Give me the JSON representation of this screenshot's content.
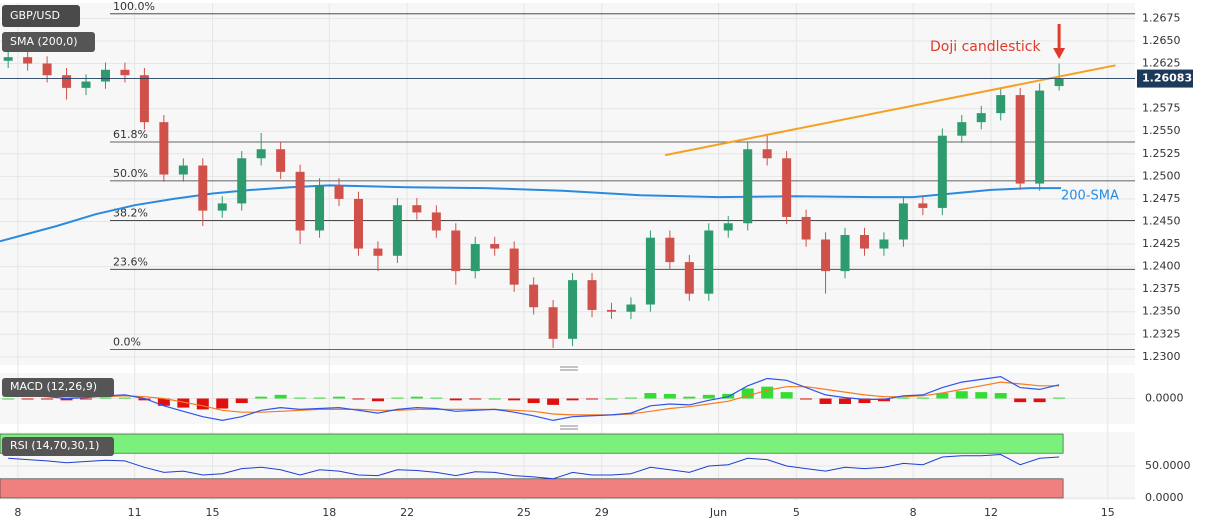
{
  "chart_data": [
    {
      "type": "candlestick",
      "title": "GBP/USD",
      "indicator_label": "SMA (200,0)",
      "x": [
        -0.25,
        0.25,
        0.75,
        1.25,
        1.75,
        2.25,
        2.75,
        3.25,
        3.75,
        4.25,
        4.75,
        5.25,
        5.75,
        6.25,
        6.75,
        7.25,
        7.75,
        8.25,
        8.75,
        9.25,
        9.75,
        10.25,
        10.75,
        11.25,
        11.75,
        12.25,
        12.75,
        13.25,
        13.75,
        14.25,
        14.75,
        15.25,
        15.75,
        16.25,
        16.75,
        17.25,
        17.75,
        18.25,
        18.75,
        19.25,
        19.75,
        20.25,
        20.75,
        21.25,
        21.75,
        22.25,
        22.75,
        23.25,
        23.75,
        24.25,
        24.75,
        25.25,
        25.75,
        26.25,
        26.75
      ],
      "open": [
        1.2628,
        1.2632,
        1.2625,
        1.2612,
        1.2598,
        1.2605,
        1.2618,
        1.2612,
        1.256,
        1.2502,
        1.2512,
        1.2462,
        1.247,
        1.252,
        1.253,
        1.2505,
        1.244,
        1.249,
        1.2475,
        1.242,
        1.2412,
        1.2468,
        1.246,
        1.244,
        1.2395,
        1.2425,
        1.242,
        1.238,
        1.2355,
        1.232,
        1.2385,
        1.2352,
        1.235,
        1.2358,
        1.2432,
        1.2405,
        1.237,
        1.244,
        1.2448,
        1.253,
        1.252,
        1.2455,
        1.243,
        1.2395,
        1.2435,
        1.242,
        1.243,
        1.247,
        1.2465,
        1.2545,
        1.256,
        1.257,
        1.259,
        1.2492,
        1.26
      ],
      "high": [
        1.264,
        1.264,
        1.2633,
        1.262,
        1.2613,
        1.2626,
        1.2626,
        1.262,
        1.2568,
        1.252,
        1.252,
        1.2478,
        1.2528,
        1.2548,
        1.2538,
        1.2513,
        1.2498,
        1.2498,
        1.2483,
        1.2428,
        1.2476,
        1.2476,
        1.2468,
        1.2448,
        1.2433,
        1.2433,
        1.2428,
        1.2388,
        1.2363,
        1.2393,
        1.2393,
        1.236,
        1.2366,
        1.244,
        1.244,
        1.2413,
        1.2448,
        1.2456,
        1.2538,
        1.2545,
        1.2528,
        1.2463,
        1.2438,
        1.2443,
        1.2443,
        1.2438,
        1.2478,
        1.2478,
        1.2553,
        1.2568,
        1.2578,
        1.2598,
        1.2598,
        1.2603,
        1.2625
      ],
      "low": [
        1.262,
        1.2617,
        1.2604,
        1.2585,
        1.259,
        1.2597,
        1.2604,
        1.2552,
        1.2494,
        1.2494,
        1.2445,
        1.2454,
        1.2462,
        1.2512,
        1.2497,
        1.2425,
        1.2432,
        1.2467,
        1.2412,
        1.2395,
        1.2404,
        1.2452,
        1.2432,
        1.238,
        1.2387,
        1.2412,
        1.2372,
        1.2347,
        1.231,
        1.2312,
        1.2344,
        1.2342,
        1.2342,
        1.235,
        1.2397,
        1.2362,
        1.2362,
        1.2432,
        1.244,
        1.2512,
        1.2447,
        1.2422,
        1.237,
        1.2387,
        1.2412,
        1.2412,
        1.2422,
        1.2457,
        1.2457,
        1.2537,
        1.2552,
        1.2562,
        1.2485,
        1.2484,
        1.2595
      ],
      "close": [
        1.2632,
        1.2625,
        1.2612,
        1.2598,
        1.2605,
        1.2618,
        1.2612,
        1.256,
        1.2502,
        1.2512,
        1.2462,
        1.247,
        1.252,
        1.253,
        1.2505,
        1.244,
        1.249,
        1.2475,
        1.242,
        1.2412,
        1.2468,
        1.246,
        1.244,
        1.2395,
        1.2425,
        1.242,
        1.238,
        1.2355,
        1.232,
        1.2385,
        1.2352,
        1.235,
        1.2358,
        1.2432,
        1.2405,
        1.237,
        1.244,
        1.2448,
        1.253,
        1.252,
        1.2455,
        1.243,
        1.2395,
        1.2435,
        1.242,
        1.243,
        1.247,
        1.2465,
        1.2545,
        1.256,
        1.257,
        1.259,
        1.2492,
        1.2595,
        1.2608
      ],
      "up_color": "#2e9b6f",
      "down_color": "#d0504a",
      "xlim": [
        -0.46,
        28.7
      ],
      "xticks": [
        {
          "value": 0,
          "label": "8"
        },
        {
          "value": 3,
          "label": "11"
        },
        {
          "value": 5,
          "label": "15"
        },
        {
          "value": 8,
          "label": "18"
        },
        {
          "value": 10,
          "label": "22"
        },
        {
          "value": 13,
          "label": "25"
        },
        {
          "value": 15,
          "label": "29"
        },
        {
          "value": 18,
          "label": "Jun"
        },
        {
          "value": 20,
          "label": "5"
        },
        {
          "value": 23,
          "label": "8"
        },
        {
          "value": 25,
          "label": "12"
        },
        {
          "value": 28,
          "label": "15"
        }
      ],
      "ylim": [
        1.2291,
        1.2692
      ],
      "yticks": [
        {
          "value": 1.23,
          "label": "1.2300"
        },
        1.2325,
        {
          "value": 1.235,
          "label": "1.2350"
        },
        1.2375,
        {
          "value": 1.24,
          "label": "1.2400"
        },
        1.2425,
        {
          "value": 1.245,
          "label": "1.2450"
        },
        1.2475,
        {
          "value": 1.25,
          "label": "1.2500"
        },
        1.2525,
        {
          "value": 1.255,
          "label": "1.2550"
        },
        1.2575,
        1.2625,
        {
          "value": 1.265,
          "label": "1.2650"
        },
        1.2675
      ],
      "grid": true,
      "sma": {
        "name": "200-SMA",
        "color": "#2a8ae0",
        "x": [
          -0.46,
          1,
          2,
          3,
          4,
          5,
          6,
          7,
          8,
          10,
          12,
          14,
          16,
          18,
          20,
          22,
          23,
          24,
          25,
          26,
          26.8
        ],
        "values": [
          1.2428,
          1.2445,
          1.2458,
          1.2468,
          1.2475,
          1.2481,
          1.2485,
          1.2488,
          1.249,
          1.2488,
          1.2487,
          1.2484,
          1.2479,
          1.2477,
          1.2478,
          1.2477,
          1.2477,
          1.2481,
          1.2485,
          1.2487,
          1.2487
        ]
      },
      "trendline": {
        "color": "#f5a020",
        "x": [
          16.63,
          28.2
        ],
        "values": [
          1.25235,
          1.2623
        ]
      },
      "fibonacci": [
        {
          "label": "100.0%",
          "value": 1.268
        },
        {
          "label": "61.8%",
          "value": 1.2538
        },
        {
          "label": "50.0%",
          "value": 1.2495
        },
        {
          "label": "38.2%",
          "value": 1.2451
        },
        {
          "label": "23.6%",
          "value": 1.2397
        },
        {
          "label": "0.0%",
          "value": 1.2308
        }
      ],
      "last_price": {
        "value": 1.26083,
        "label": "1.26083"
      },
      "annotation": "Doji candlestick",
      "annotation_color": "#e03a2a"
    },
    {
      "type": "macd",
      "label": "MACD (12,26,9)",
      "macd": {
        "color": "#2f54eb",
        "values": [
          0.0004,
          0.0003,
          0.0002,
          0.0,
          0.0001,
          0.0003,
          0.0004,
          0.0,
          -0.0008,
          -0.0014,
          -0.002,
          -0.0024,
          -0.002,
          -0.0013,
          -0.001,
          -0.0012,
          -0.0011,
          -0.001,
          -0.0013,
          -0.0016,
          -0.0012,
          -0.001,
          -0.0011,
          -0.0014,
          -0.0013,
          -0.0012,
          -0.0015,
          -0.0019,
          -0.0024,
          -0.002,
          -0.0019,
          -0.0018,
          -0.0016,
          -0.0008,
          -0.0006,
          -0.0007,
          -0.0002,
          0.0002,
          0.0014,
          0.0022,
          0.002,
          0.0012,
          0.0004,
          0.0001,
          -0.0001,
          -0.0001,
          0.0003,
          0.0004,
          0.0012,
          0.0018,
          0.0021,
          0.0024,
          0.0012,
          0.001,
          0.0015
        ]
      },
      "signal": {
        "color": "#f57c1f",
        "values": [
          0.0004,
          0.0004,
          0.0003,
          0.0002,
          0.0002,
          0.0002,
          0.0003,
          0.0002,
          0.0,
          -0.0004,
          -0.0008,
          -0.0013,
          -0.0015,
          -0.0015,
          -0.0014,
          -0.0013,
          -0.0012,
          -0.0012,
          -0.0012,
          -0.0013,
          -0.0013,
          -0.0012,
          -0.0012,
          -0.0012,
          -0.0012,
          -0.0012,
          -0.0013,
          -0.0014,
          -0.0017,
          -0.0018,
          -0.0018,
          -0.0018,
          -0.0017,
          -0.0014,
          -0.0011,
          -0.0009,
          -0.0006,
          -0.0003,
          0.0003,
          0.0009,
          0.0013,
          0.0013,
          0.001,
          0.0007,
          0.0004,
          0.0002,
          0.0002,
          0.0003,
          0.0006,
          0.001,
          0.0014,
          0.0018,
          0.0016,
          0.0014,
          0.0014
        ]
      },
      "histogram": {
        "up_color": "#33dd33",
        "down_color": "#e01010",
        "values": [
          0.0,
          -0.0001,
          -0.0001,
          -0.0002,
          -0.0001,
          0.0001,
          0.0001,
          -0.0002,
          -0.0008,
          -0.001,
          -0.0012,
          -0.0011,
          -0.0005,
          0.0002,
          0.0004,
          0.0001,
          0.0001,
          0.0002,
          -0.0001,
          -0.0003,
          0.0001,
          0.0002,
          0.0001,
          -0.0002,
          -0.0001,
          0.0,
          -0.0002,
          -0.0005,
          -0.0007,
          -0.0002,
          -0.0001,
          0.0,
          0.0001,
          0.0006,
          0.0005,
          0.0002,
          0.0004,
          0.0005,
          0.0011,
          0.0013,
          0.0007,
          -0.0001,
          -0.0006,
          -0.0006,
          -0.0005,
          -0.0003,
          0.0001,
          0.0001,
          0.0006,
          0.0008,
          0.0007,
          0.0006,
          -0.0004,
          -0.0004,
          0.0001
        ]
      },
      "ylim": [
        -0.0028,
        0.0028
      ],
      "yticks": [
        {
          "value": 0,
          "label": "0.0000"
        }
      ]
    },
    {
      "type": "rsi",
      "label": "RSI (14,70,30,1)",
      "color": "#1f3fd0",
      "values": [
        62,
        60,
        58,
        55,
        57,
        59,
        58,
        48,
        40,
        42,
        36,
        38,
        46,
        48,
        44,
        36,
        44,
        42,
        36,
        35,
        44,
        43,
        40,
        35,
        41,
        40,
        35,
        33,
        30,
        40,
        36,
        36,
        38,
        48,
        44,
        40,
        50,
        52,
        62,
        60,
        50,
        46,
        42,
        48,
        46,
        48,
        54,
        52,
        64,
        66,
        66,
        68,
        52,
        62,
        64
      ],
      "ylim": [
        0,
        100
      ],
      "yticks": [
        {
          "value": 50,
          "label": "50.0000"
        },
        {
          "value": 0,
          "label": "0.0000"
        }
      ],
      "overbought": 70,
      "oversold": 30,
      "overbought_color": "#7cf07c",
      "oversold_color": "#f08080"
    }
  ]
}
